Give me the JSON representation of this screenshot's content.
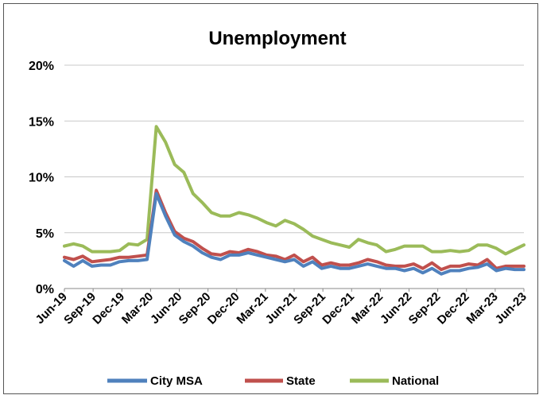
{
  "chart_data": {
    "type": "line",
    "title": "Unemployment",
    "xlabel": "",
    "ylabel": "",
    "ylim": [
      0,
      20
    ],
    "yticks": [
      "0%",
      "5%",
      "10%",
      "15%",
      "20%"
    ],
    "ytick_values": [
      0,
      5,
      10,
      15,
      20
    ],
    "xticks": [
      "Jun-19",
      "Sep-19",
      "Dec-19",
      "Mar-20",
      "Jun-20",
      "Sep-20",
      "Dec-20",
      "Mar-21",
      "Jun-21",
      "Sep-21",
      "Dec-21",
      "Mar-22",
      "Jun-22",
      "Sep-22",
      "Dec-22",
      "Mar-23",
      "Jun-23"
    ],
    "grid": true,
    "legend_position": "bottom",
    "series": [
      {
        "name": "City MSA",
        "color": "#4F81BD",
        "values": [
          2.5,
          2.0,
          2.5,
          2.0,
          2.1,
          2.1,
          2.4,
          2.5,
          2.5,
          2.6,
          8.5,
          6.5,
          4.8,
          4.2,
          3.8,
          3.2,
          2.8,
          2.6,
          3.0,
          3.0,
          3.2,
          3.0,
          2.8,
          2.6,
          2.4,
          2.6,
          2.0,
          2.4,
          1.8,
          2.0,
          1.8,
          1.8,
          2.0,
          2.2,
          2.0,
          1.8,
          1.8,
          1.6,
          1.8,
          1.4,
          1.8,
          1.3,
          1.6,
          1.6,
          1.8,
          1.9,
          2.2,
          1.6,
          1.8,
          1.7,
          1.7
        ]
      },
      {
        "name": "State",
        "color": "#C0504D",
        "values": [
          2.8,
          2.6,
          2.9,
          2.4,
          2.5,
          2.6,
          2.8,
          2.8,
          2.9,
          3.0,
          8.8,
          6.8,
          5.1,
          4.5,
          4.2,
          3.6,
          3.1,
          3.0,
          3.3,
          3.2,
          3.5,
          3.3,
          3.0,
          2.9,
          2.6,
          3.0,
          2.4,
          2.8,
          2.1,
          2.3,
          2.1,
          2.1,
          2.3,
          2.6,
          2.4,
          2.1,
          2.0,
          2.0,
          2.2,
          1.8,
          2.3,
          1.7,
          2.0,
          2.0,
          2.2,
          2.1,
          2.6,
          1.8,
          2.0,
          2.0,
          2.0
        ]
      },
      {
        "name": "National",
        "color": "#9BBB59",
        "values": [
          3.8,
          4.0,
          3.8,
          3.3,
          3.3,
          3.3,
          3.4,
          4.0,
          3.9,
          4.4,
          14.5,
          13.1,
          11.1,
          10.4,
          8.5,
          7.7,
          6.8,
          6.5,
          6.5,
          6.8,
          6.6,
          6.3,
          5.9,
          5.6,
          6.1,
          5.8,
          5.3,
          4.7,
          4.4,
          4.1,
          3.9,
          3.7,
          4.4,
          4.1,
          3.9,
          3.3,
          3.5,
          3.8,
          3.8,
          3.8,
          3.3,
          3.3,
          3.4,
          3.3,
          3.4,
          3.9,
          3.9,
          3.6,
          3.1,
          3.5,
          3.9
        ]
      }
    ]
  }
}
